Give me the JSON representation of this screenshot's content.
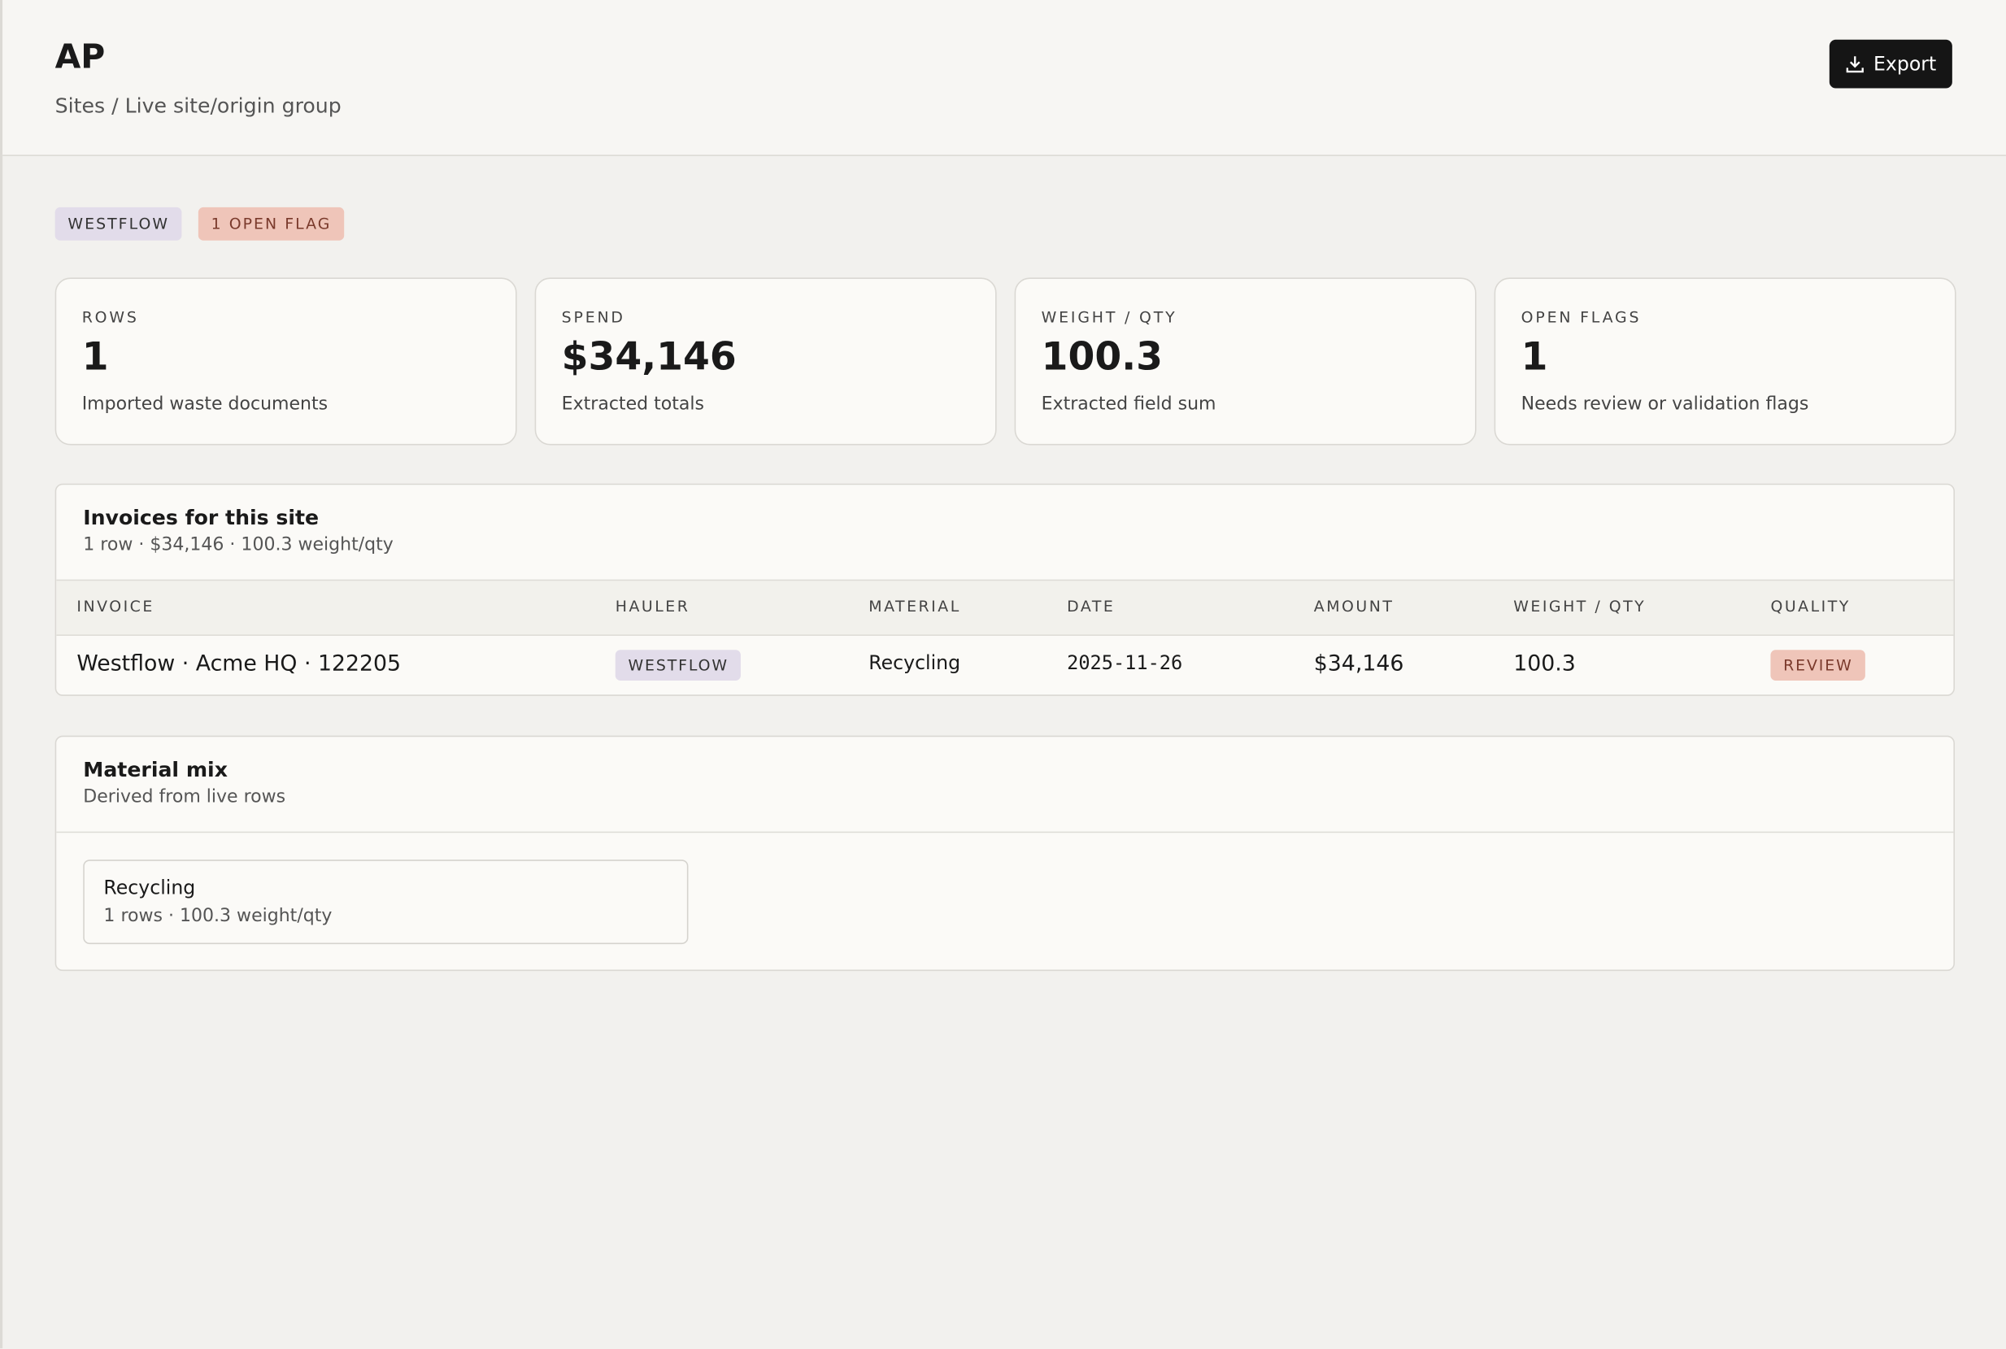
{
  "header": {
    "title": "AP",
    "breadcrumb": "Sites / Live site/origin group",
    "export_button": "Export"
  },
  "badges": [
    "WESTFLOW",
    "1 OPEN FLAG"
  ],
  "stats": [
    {
      "label": "ROWS",
      "value": "1",
      "note": "Imported waste documents"
    },
    {
      "label": "SPEND",
      "value": "$34,146",
      "note": "Extracted totals"
    },
    {
      "label": "WEIGHT / QTY",
      "value": "100.3",
      "note": "Extracted field sum"
    },
    {
      "label": "OPEN FLAGS",
      "value": "1",
      "note": "Needs review or validation flags"
    }
  ],
  "invoices": {
    "title": "Invoices for this site",
    "summary": "1 row · $34,146 · 100.3 weight/qty",
    "columns": [
      "INVOICE",
      "HAULER",
      "MATERIAL",
      "DATE",
      "AMOUNT",
      "WEIGHT / QTY",
      "QUALITY"
    ],
    "rows": [
      [
        "Westflow · Acme HQ · 122205",
        "WESTFLOW",
        "Recycling",
        "2025-11-26",
        "$34,146",
        "100.3",
        "REVIEW"
      ]
    ]
  },
  "material_mix": {
    "title": "Material mix",
    "subtitle": "Derived from live rows",
    "items": [
      {
        "name": "Recycling",
        "detail": "1 rows · 100.3 weight/qty"
      }
    ]
  }
}
